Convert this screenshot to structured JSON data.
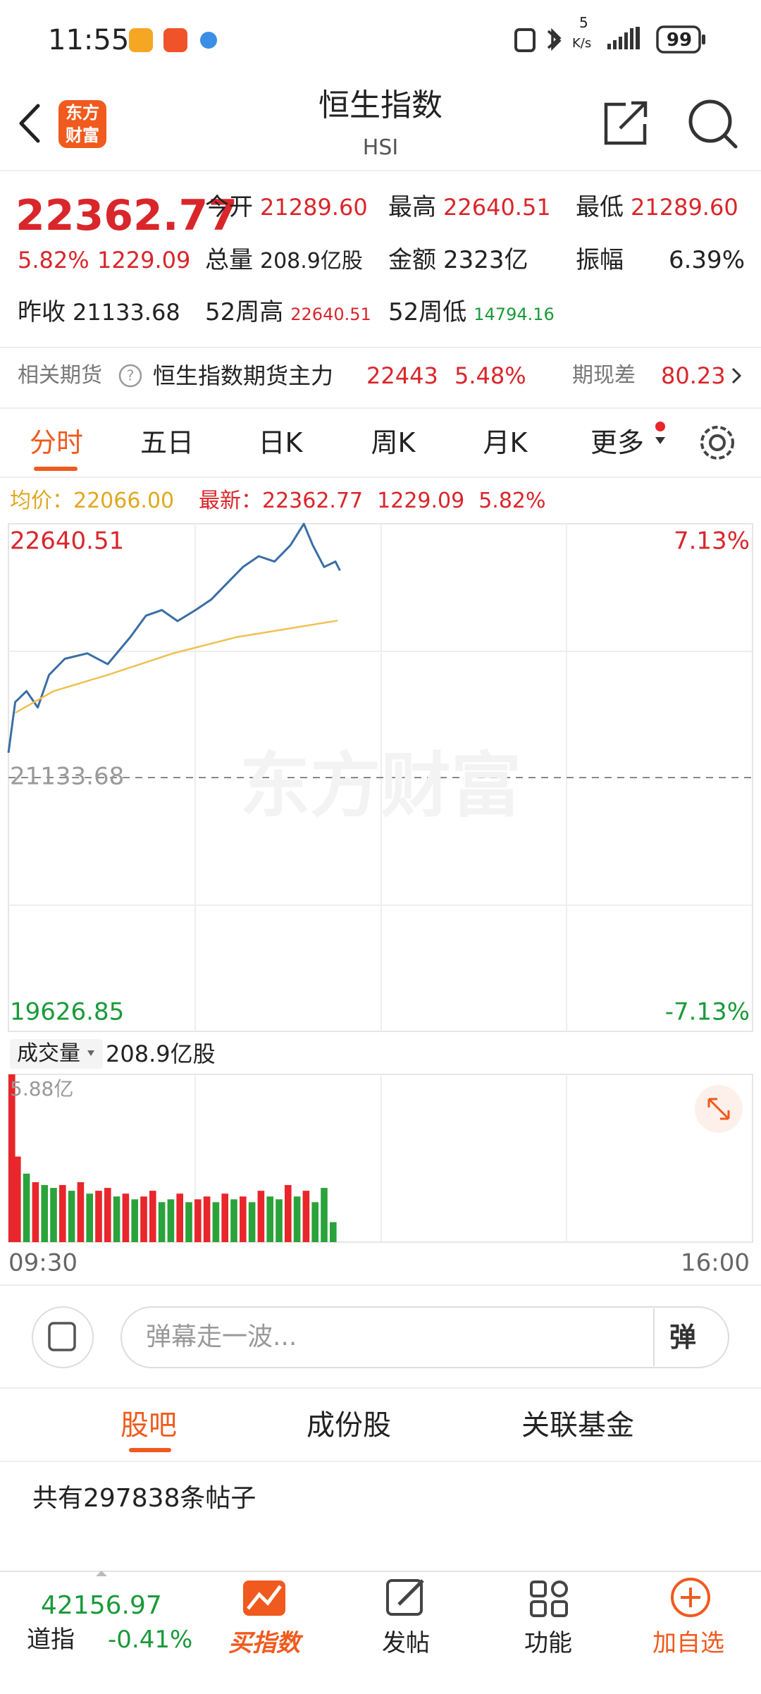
{
  "status_bar": {
    "time": "11:55",
    "net_speed": "5",
    "net_unit": "K/s",
    "battery": "99"
  },
  "header": {
    "logo": "东方财富",
    "title": "恒生指数",
    "code": "HSI"
  },
  "quote": {
    "price": "22362.77",
    "change_pct": "5.82%",
    "change": "1229.09",
    "stats": [
      {
        "label": "今开",
        "value": "21289.60"
      },
      {
        "label": "最高",
        "value": "22640.51"
      },
      {
        "label": "最低",
        "value": "21289.60"
      },
      {
        "label": "总量",
        "value": "208.9亿股"
      },
      {
        "label": "金额",
        "value": "2323亿"
      },
      {
        "label": "振幅",
        "value": "6.39%"
      },
      {
        "label": "昨收",
        "value": "21133.68"
      },
      {
        "label": "52周高",
        "value": "22640.51"
      },
      {
        "label": "52周低",
        "value": "14794.16"
      }
    ]
  },
  "futures": {
    "label": "相关期货",
    "name": "恒生指数期货主力",
    "price": "22443",
    "pct": "5.48%",
    "basis_label": "期现差",
    "basis": "80.23"
  },
  "tabs": [
    "分时",
    "五日",
    "日K",
    "周K",
    "月K",
    "更多"
  ],
  "legend": {
    "avg_label": "均价：",
    "avg": "22066.00",
    "last_label": "最新：",
    "last": "22362.77",
    "change": "1229.09",
    "pct": "5.82%"
  },
  "watermark": "东方财富",
  "chart_data": [
    {
      "type": "line",
      "xlim": [
        0,
        330
      ],
      "ylim": [
        19626.85,
        22640.51
      ],
      "yticks": [
        22640.51,
        21133.68,
        19626.85
      ],
      "tick_colors": [
        "#d9262b",
        "#9a9a9a",
        "#1a9a3a"
      ],
      "y2lim": [
        -7.13,
        7.13
      ],
      "y2ticks": [
        {
          "value": 7.13,
          "label": "7.13%"
        },
        {
          "value": -7.13,
          "label": "-7.13%"
        }
      ],
      "series": [
        {
          "name": "最新",
          "color": "#3a6ea5",
          "x": [
            0,
            3,
            8,
            13,
            18,
            25,
            35,
            44,
            54,
            61,
            68,
            75,
            83,
            90,
            97,
            104,
            111,
            118,
            125,
            131,
            135,
            140,
            145,
            147
          ],
          "values": [
            21281,
            21582,
            21647,
            21550,
            21743,
            21839,
            21871,
            21807,
            21967,
            22095,
            22128,
            22063,
            22128,
            22192,
            22288,
            22384,
            22448,
            22416,
            22512,
            22640,
            22512,
            22384,
            22416,
            22363
          ]
        },
        {
          "name": "均价",
          "color": "#f0c050",
          "x": [
            3,
            20,
            44,
            73,
            101,
            146
          ],
          "values": [
            21518,
            21647,
            21743,
            21871,
            21967,
            22066
          ]
        }
      ]
    },
    {
      "type": "bar",
      "xlim": [
        0,
        330
      ],
      "ylim": [
        0,
        5.88
      ],
      "yticks": [
        {
          "value": 5.88,
          "label": "5.88亿"
        }
      ],
      "xticks": [
        {
          "value": 0,
          "label": "09:30"
        },
        {
          "value": 330,
          "label": "16:00"
        }
      ],
      "x": [
        0,
        4,
        8,
        12,
        16,
        20,
        24,
        28,
        32,
        36,
        40,
        44,
        48,
        52,
        56,
        60,
        64,
        68,
        72,
        76,
        80,
        84,
        88,
        92,
        96,
        100,
        104,
        108,
        112,
        116,
        120,
        124,
        128,
        132,
        136,
        140,
        144
      ],
      "values": [
        5.88,
        3.0,
        2.4,
        2.1,
        2.0,
        1.9,
        2.0,
        1.8,
        2.1,
        1.7,
        1.8,
        1.9,
        1.6,
        1.7,
        1.5,
        1.6,
        1.8,
        1.4,
        1.5,
        1.7,
        1.4,
        1.5,
        1.6,
        1.4,
        1.7,
        1.5,
        1.6,
        1.4,
        1.8,
        1.6,
        1.5,
        2.0,
        1.6,
        1.8,
        1.4,
        1.9,
        0.7
      ],
      "colors": [
        "#e8262b",
        "#e8262b",
        "#2aa33a",
        "#e8262b",
        "#2aa33a",
        "#2aa33a",
        "#e8262b",
        "#2aa33a",
        "#e8262b",
        "#2aa33a",
        "#e8262b",
        "#e8262b",
        "#2aa33a",
        "#e8262b",
        "#2aa33a",
        "#e8262b",
        "#e8262b",
        "#2aa33a",
        "#2aa33a",
        "#e8262b",
        "#2aa33a",
        "#e8262b",
        "#e8262b",
        "#2aa33a",
        "#e8262b",
        "#2aa33a",
        "#e8262b",
        "#2aa33a",
        "#e8262b",
        "#2aa33a",
        "#2aa33a",
        "#e8262b",
        "#2aa33a",
        "#e8262b",
        "#2aa33a",
        "#2aa33a",
        "#2aa33a"
      ]
    }
  ],
  "volume_header": {
    "label": "成交量",
    "total": "208.9亿股"
  },
  "comment": {
    "placeholder": "弹幕走一波...",
    "button": "弹"
  },
  "sub_tabs": [
    "股吧",
    "成份股",
    "关联基金"
  ],
  "post_count": "共有297838条帖子",
  "bottom_nav": {
    "index_value": "42156.97",
    "index_name": "道指",
    "index_pct": "-0.41%",
    "items": [
      "买指数",
      "发帖",
      "功能",
      "加自选"
    ]
  }
}
